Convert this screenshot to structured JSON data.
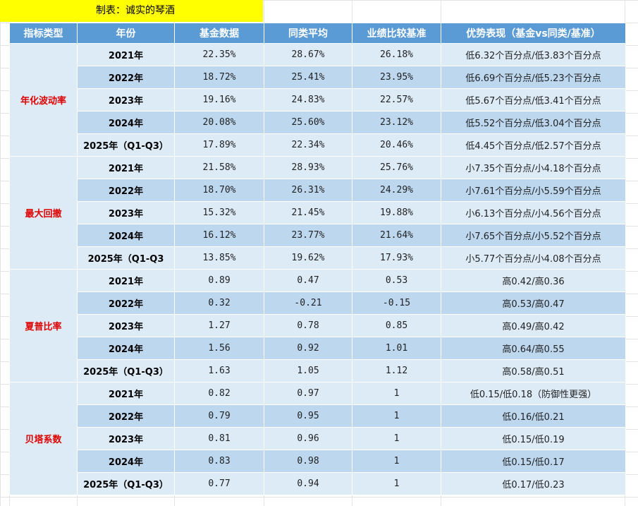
{
  "banner": "制表：诚实的琴酒",
  "headers": [
    "指标类型",
    "年份",
    "基金数据",
    "同类平均",
    "业绩比较基准",
    "优势表现（基金vs同类/基准）"
  ],
  "groups": [
    {
      "name": "年化波动率",
      "rows": [
        {
          "year": "2021年",
          "fund": "22.35%",
          "avg": "28.67%",
          "bench": "26.18%",
          "adv": "低6.32个百分点/低3.83个百分点"
        },
        {
          "year": "2022年",
          "fund": "18.72%",
          "avg": "25.41%",
          "bench": "23.95%",
          "adv": "低6.69个百分点/低5.23个百分点"
        },
        {
          "year": "2023年",
          "fund": "19.16%",
          "avg": "24.83%",
          "bench": "22.57%",
          "adv": "低5.67个百分点/低3.41个百分点"
        },
        {
          "year": "2024年",
          "fund": "20.08%",
          "avg": "25.60%",
          "bench": "23.12%",
          "adv": "低5.52个百分点/低3.04个百分点"
        },
        {
          "year": "2025年（Q1-Q3）",
          "fund": "17.89%",
          "avg": "22.34%",
          "bench": "20.46%",
          "adv": "低4.45个百分点/低2.57个百分点"
        }
      ]
    },
    {
      "name": "最大回撤",
      "rows": [
        {
          "year": "2021年",
          "fund": "21.58%",
          "avg": "28.93%",
          "bench": "25.76%",
          "adv": "小7.35个百分点/小4.18个百分点"
        },
        {
          "year": "2022年",
          "fund": "18.70%",
          "avg": "26.31%",
          "bench": "24.29%",
          "adv": "小7.61个百分点/小5.59个百分点"
        },
        {
          "year": "2023年",
          "fund": "15.32%",
          "avg": "21.45%",
          "bench": "19.88%",
          "adv": "小6.13个百分点/小4.56个百分点"
        },
        {
          "year": "2024年",
          "fund": "16.12%",
          "avg": "23.77%",
          "bench": "21.64%",
          "adv": "小7.65个百分点/小5.52个百分点"
        },
        {
          "year": "2025年（Q1-Q3",
          "fund": "13.85%",
          "avg": "19.62%",
          "bench": "17.93%",
          "adv": "小5.77个百分点/小4.08个百分点"
        }
      ]
    },
    {
      "name": "夏普比率",
      "rows": [
        {
          "year": "2021年",
          "fund": "0.89",
          "avg": "0.47",
          "bench": "0.53",
          "adv": "高0.42/高0.36"
        },
        {
          "year": "2022年",
          "fund": "0.32",
          "avg": "-0.21",
          "bench": "-0.15",
          "adv": "高0.53/高0.47"
        },
        {
          "year": "2023年",
          "fund": "1.27",
          "avg": "0.78",
          "bench": "0.85",
          "adv": "高0.49/高0.42"
        },
        {
          "year": "2024年",
          "fund": "1.56",
          "avg": "0.92",
          "bench": "1.01",
          "adv": "高0.64/高0.55"
        },
        {
          "year": "2025年（Q1-Q3）",
          "fund": "1.63",
          "avg": "1.05",
          "bench": "1.12",
          "adv": "高0.58/高0.51"
        }
      ]
    },
    {
      "name": "贝塔系数",
      "rows": [
        {
          "year": "2021年",
          "fund": "0.82",
          "avg": "0.97",
          "bench": "1",
          "adv": "低0.15/低0.18（防御性更强）"
        },
        {
          "year": "2022年",
          "fund": "0.79",
          "avg": "0.95",
          "bench": "1",
          "adv": "低0.16/低0.21"
        },
        {
          "year": "2023年",
          "fund": "0.81",
          "avg": "0.96",
          "bench": "1",
          "adv": "低0.15/低0.19"
        },
        {
          "year": "2024年",
          "fund": "0.83",
          "avg": "0.98",
          "bench": "1",
          "adv": "低0.15/低0.17"
        },
        {
          "year": "2025年（Q1-Q3）",
          "fund": "0.77",
          "avg": "0.94",
          "bench": "1",
          "adv": "低0.17/低0.23"
        }
      ]
    }
  ]
}
